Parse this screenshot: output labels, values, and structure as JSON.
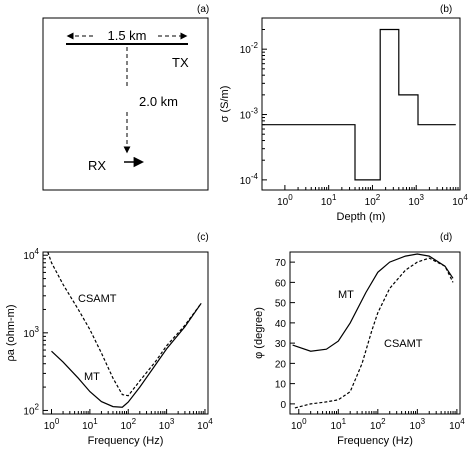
{
  "chart_data": [
    {
      "panel": "(a)",
      "type": "diagram",
      "texts": {
        "length": "1.5 km",
        "offset": "2.0 km",
        "tx": "TX",
        "rx": "RX"
      }
    },
    {
      "panel": "(b)",
      "type": "line",
      "xlabel": "Depth (m)",
      "ylabel": "σ (S/m)",
      "xscale": "log",
      "yscale": "log",
      "xlim": [
        0.3,
        10000
      ],
      "ylim": [
        7e-05,
        0.03
      ],
      "xticks": [
        "10^0",
        "10^1",
        "10^2",
        "10^3",
        "10^4"
      ],
      "yticks": [
        "10^-4",
        "10^-3",
        "10^-2"
      ],
      "series": [
        {
          "x": [
            0.3,
            40,
            40,
            150,
            150,
            400,
            400,
            1100,
            1100,
            8000
          ],
          "y": [
            0.0007,
            0.0007,
            0.0001,
            0.0001,
            0.02,
            0.02,
            0.002,
            0.002,
            0.0007,
            0.0007
          ]
        }
      ]
    },
    {
      "panel": "(c)",
      "type": "line",
      "xlabel": "Frequency (Hz)",
      "ylabel": "ρa (ohm-m)",
      "xscale": "log",
      "yscale": "log",
      "xlim": [
        0.6,
        12000
      ],
      "ylim": [
        90,
        11000
      ],
      "xticks": [
        "10^0",
        "10^1",
        "10^2",
        "10^3",
        "10^4"
      ],
      "yticks": [
        "10^2",
        "10^3",
        "10^4"
      ],
      "series": [
        {
          "name": "MT",
          "style": "solid",
          "x": [
            1,
            2,
            5,
            10,
            20,
            40,
            70,
            100,
            200,
            500,
            1000,
            3000,
            8000
          ],
          "y": [
            580,
            420,
            260,
            175,
            130,
            112,
            110,
            128,
            200,
            380,
            620,
            1200,
            2400
          ]
        },
        {
          "name": "CSAMT",
          "style": "dashed",
          "x": [
            0.8,
            1,
            2,
            5,
            10,
            20,
            40,
            70,
            100,
            200,
            500,
            1000,
            3000,
            8000
          ],
          "y": [
            11000,
            8000,
            4200,
            2000,
            1100,
            550,
            260,
            160,
            155,
            240,
            420,
            680,
            1250,
            2400
          ]
        }
      ],
      "annotations": [
        "CSAMT",
        "MT"
      ]
    },
    {
      "panel": "(d)",
      "type": "line",
      "xlabel": "Frequency (Hz)",
      "ylabel": "φ (degree)",
      "xscale": "log",
      "yscale": "linear",
      "xlim": [
        0.6,
        12000
      ],
      "ylim": [
        -5,
        75
      ],
      "xticks": [
        "10^0",
        "10^1",
        "10^2",
        "10^3",
        "10^4"
      ],
      "yticks": [
        0,
        10,
        20,
        30,
        40,
        50,
        60,
        70
      ],
      "series": [
        {
          "name": "MT",
          "style": "solid",
          "x": [
            0.7,
            2,
            5,
            10,
            20,
            50,
            100,
            200,
            500,
            1000,
            2000,
            5000,
            8000
          ],
          "y": [
            29,
            26,
            27,
            31,
            40,
            55,
            65,
            70,
            73,
            74,
            73,
            68,
            62
          ]
        },
        {
          "name": "CSAMT",
          "style": "dashed",
          "x": [
            0.8,
            2,
            5,
            10,
            20,
            40,
            70,
            100,
            200,
            500,
            1000,
            2000,
            5000,
            8000
          ],
          "y": [
            -2,
            0,
            1,
            2,
            6,
            20,
            36,
            45,
            57,
            66,
            70,
            72,
            68,
            60
          ]
        }
      ],
      "annotations": [
        "MT",
        "CSAMT"
      ]
    }
  ]
}
